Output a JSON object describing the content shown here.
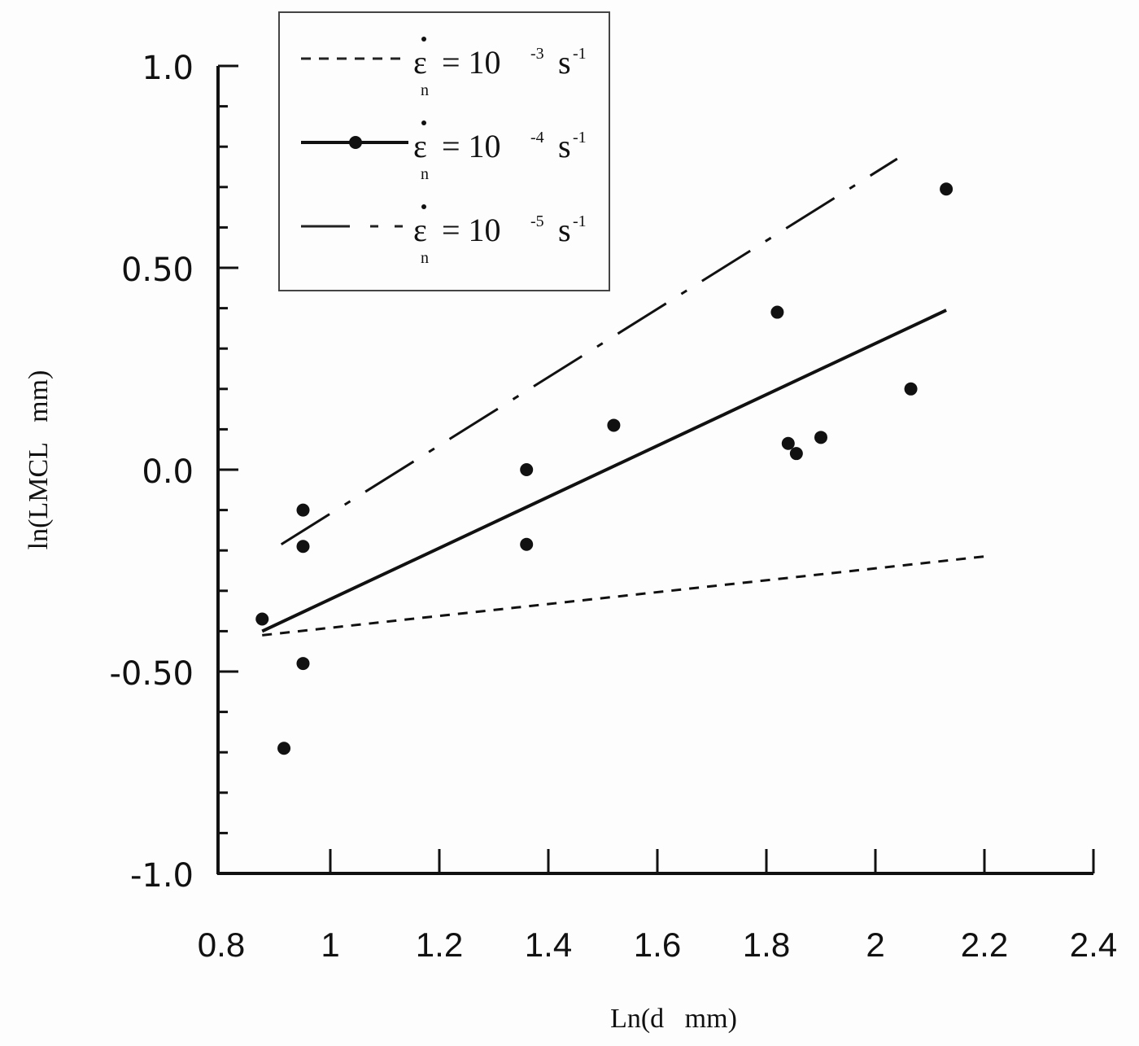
{
  "chart_data": {
    "type": "scatter",
    "title": "",
    "xlabel": "Ln(d   mm)",
    "ylabel": "ln(LMCL   mm)",
    "xlim": [
      0.8,
      2.4
    ],
    "ylim": [
      -1.0,
      1.0
    ],
    "x_ticks": [
      "0.8",
      "1",
      "1.2",
      "1.4",
      "1.6",
      "1.8",
      "2",
      "2.2",
      "2.4"
    ],
    "y_ticks": [
      "1.0",
      "0.50",
      "0.0",
      "-0.50",
      "-1.0"
    ],
    "y_minor_step": 0.1,
    "grid": false,
    "legend_position": "upper-left",
    "points": [
      {
        "x": 0.875,
        "y": -0.37
      },
      {
        "x": 0.915,
        "y": -0.69
      },
      {
        "x": 0.95,
        "y": -0.1
      },
      {
        "x": 0.95,
        "y": -0.19
      },
      {
        "x": 0.95,
        "y": -0.48
      },
      {
        "x": 1.36,
        "y": 0.0
      },
      {
        "x": 1.36,
        "y": -0.185
      },
      {
        "x": 1.52,
        "y": 0.11
      },
      {
        "x": 1.82,
        "y": 0.39
      },
      {
        "x": 1.84,
        "y": 0.065
      },
      {
        "x": 1.855,
        "y": 0.04
      },
      {
        "x": 1.9,
        "y": 0.08
      },
      {
        "x": 2.065,
        "y": 0.2
      },
      {
        "x": 2.13,
        "y": 0.695
      }
    ],
    "series": [
      {
        "name": "ε̇n = 10^-3 s^-1",
        "style": "dashed",
        "x": [
          0.875,
          2.2
        ],
        "y": [
          -0.41,
          -0.215
        ]
      },
      {
        "name": "ε̇n = 10^-4 s^-1",
        "style": "solid-with-markers",
        "x": [
          0.875,
          2.13
        ],
        "y": [
          -0.4,
          0.395
        ]
      },
      {
        "name": "ε̇n = 10^-5 s^-1",
        "style": "long-dash-dot",
        "x": [
          0.91,
          2.04
        ],
        "y": [
          -0.185,
          0.77
        ]
      }
    ]
  },
  "legend": [
    {
      "symbol": "ε",
      "sub": "n",
      "eq": "= 10",
      "exp": "-3",
      "unit": "s",
      "unit_exp": "-1"
    },
    {
      "symbol": "ε",
      "sub": "n",
      "eq": "= 10",
      "exp": "-4",
      "unit": "s",
      "unit_exp": "-1"
    },
    {
      "symbol": "ε",
      "sub": "n",
      "eq": "= 10",
      "exp": "-5",
      "unit": "s",
      "unit_exp": "-1"
    }
  ],
  "colors": {
    "ink": "#111111",
    "background": "#fdfdfd"
  }
}
